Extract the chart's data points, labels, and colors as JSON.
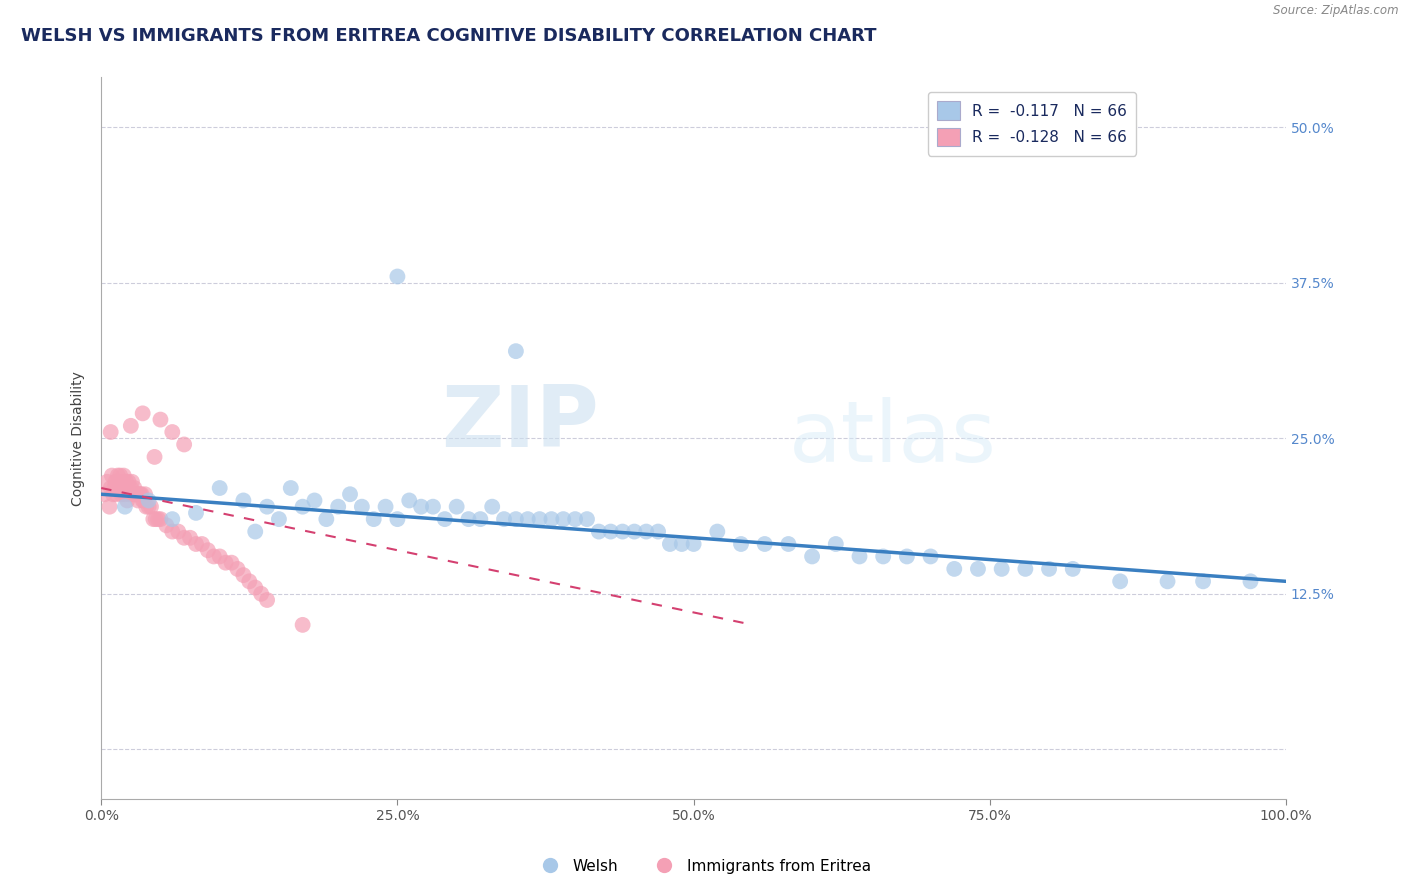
{
  "title": "WELSH VS IMMIGRANTS FROM ERITREA COGNITIVE DISABILITY CORRELATION CHART",
  "source": "Source: ZipAtlas.com",
  "ylabel": "Cognitive Disability",
  "xlim": [
    0.0,
    1.0
  ],
  "ylim": [
    -0.04,
    0.54
  ],
  "yticks": [
    0.0,
    0.125,
    0.25,
    0.375,
    0.5
  ],
  "ytick_labels_right": [
    "",
    "12.5%",
    "25.0%",
    "37.5%",
    "50.0%"
  ],
  "xticks": [
    0.0,
    0.25,
    0.5,
    0.75,
    1.0
  ],
  "xtick_labels": [
    "0.0%",
    "25.0%",
    "50.0%",
    "75.0%",
    "100.0%"
  ],
  "legend_r1": "R =  -0.117   N = 66",
  "legend_r2": "R =  -0.128   N = 66",
  "blue_color": "#a8c8e8",
  "pink_color": "#f4a0b5",
  "blue_line_color": "#3a7fc1",
  "pink_line_color": "#d44070",
  "watermark_zip": "ZIP",
  "watermark_atlas": "atlas",
  "background_color": "#ffffff",
  "grid_color": "#c8c8d8",
  "welsh_x": [
    0.02,
    0.04,
    0.06,
    0.08,
    0.1,
    0.12,
    0.13,
    0.14,
    0.15,
    0.16,
    0.17,
    0.18,
    0.19,
    0.2,
    0.21,
    0.22,
    0.23,
    0.24,
    0.25,
    0.26,
    0.27,
    0.28,
    0.29,
    0.3,
    0.31,
    0.32,
    0.33,
    0.34,
    0.35,
    0.36,
    0.37,
    0.38,
    0.39,
    0.4,
    0.41,
    0.42,
    0.43,
    0.44,
    0.45,
    0.46,
    0.47,
    0.48,
    0.49,
    0.5,
    0.52,
    0.54,
    0.56,
    0.58,
    0.6,
    0.62,
    0.64,
    0.66,
    0.68,
    0.7,
    0.72,
    0.74,
    0.76,
    0.78,
    0.8,
    0.82,
    0.86,
    0.9,
    0.93,
    0.97,
    0.25,
    0.35
  ],
  "welsh_y": [
    0.195,
    0.2,
    0.185,
    0.19,
    0.21,
    0.2,
    0.175,
    0.195,
    0.185,
    0.21,
    0.195,
    0.2,
    0.185,
    0.195,
    0.205,
    0.195,
    0.185,
    0.195,
    0.185,
    0.2,
    0.195,
    0.195,
    0.185,
    0.195,
    0.185,
    0.185,
    0.195,
    0.185,
    0.185,
    0.185,
    0.185,
    0.185,
    0.185,
    0.185,
    0.185,
    0.175,
    0.175,
    0.175,
    0.175,
    0.175,
    0.175,
    0.165,
    0.165,
    0.165,
    0.175,
    0.165,
    0.165,
    0.165,
    0.155,
    0.165,
    0.155,
    0.155,
    0.155,
    0.155,
    0.145,
    0.145,
    0.145,
    0.145,
    0.145,
    0.145,
    0.135,
    0.135,
    0.135,
    0.135,
    0.38,
    0.32
  ],
  "eritrea_x": [
    0.003,
    0.005,
    0.007,
    0.008,
    0.009,
    0.01,
    0.011,
    0.012,
    0.013,
    0.014,
    0.015,
    0.016,
    0.017,
    0.018,
    0.019,
    0.02,
    0.021,
    0.022,
    0.023,
    0.024,
    0.025,
    0.026,
    0.027,
    0.028,
    0.029,
    0.03,
    0.031,
    0.032,
    0.033,
    0.034,
    0.035,
    0.036,
    0.037,
    0.038,
    0.04,
    0.042,
    0.044,
    0.046,
    0.048,
    0.05,
    0.055,
    0.06,
    0.065,
    0.07,
    0.075,
    0.08,
    0.085,
    0.09,
    0.095,
    0.1,
    0.105,
    0.11,
    0.115,
    0.12,
    0.125,
    0.13,
    0.135,
    0.14,
    0.035,
    0.05,
    0.06,
    0.07,
    0.008,
    0.025,
    0.045,
    0.17
  ],
  "eritrea_y": [
    0.205,
    0.215,
    0.195,
    0.21,
    0.22,
    0.205,
    0.21,
    0.215,
    0.205,
    0.22,
    0.215,
    0.22,
    0.205,
    0.215,
    0.22,
    0.205,
    0.215,
    0.2,
    0.215,
    0.205,
    0.21,
    0.215,
    0.205,
    0.21,
    0.205,
    0.205,
    0.2,
    0.205,
    0.205,
    0.205,
    0.2,
    0.2,
    0.205,
    0.195,
    0.195,
    0.195,
    0.185,
    0.185,
    0.185,
    0.185,
    0.18,
    0.175,
    0.175,
    0.17,
    0.17,
    0.165,
    0.165,
    0.16,
    0.155,
    0.155,
    0.15,
    0.15,
    0.145,
    0.14,
    0.135,
    0.13,
    0.125,
    0.12,
    0.27,
    0.265,
    0.255,
    0.245,
    0.255,
    0.26,
    0.235,
    0.1
  ],
  "blue_line_x": [
    0.0,
    1.0
  ],
  "blue_line_y": [
    0.205,
    0.135
  ],
  "pink_line_x": [
    0.0,
    0.55
  ],
  "pink_line_y": [
    0.21,
    0.1
  ],
  "title_fontsize": 13,
  "axis_fontsize": 10,
  "tick_fontsize": 10
}
